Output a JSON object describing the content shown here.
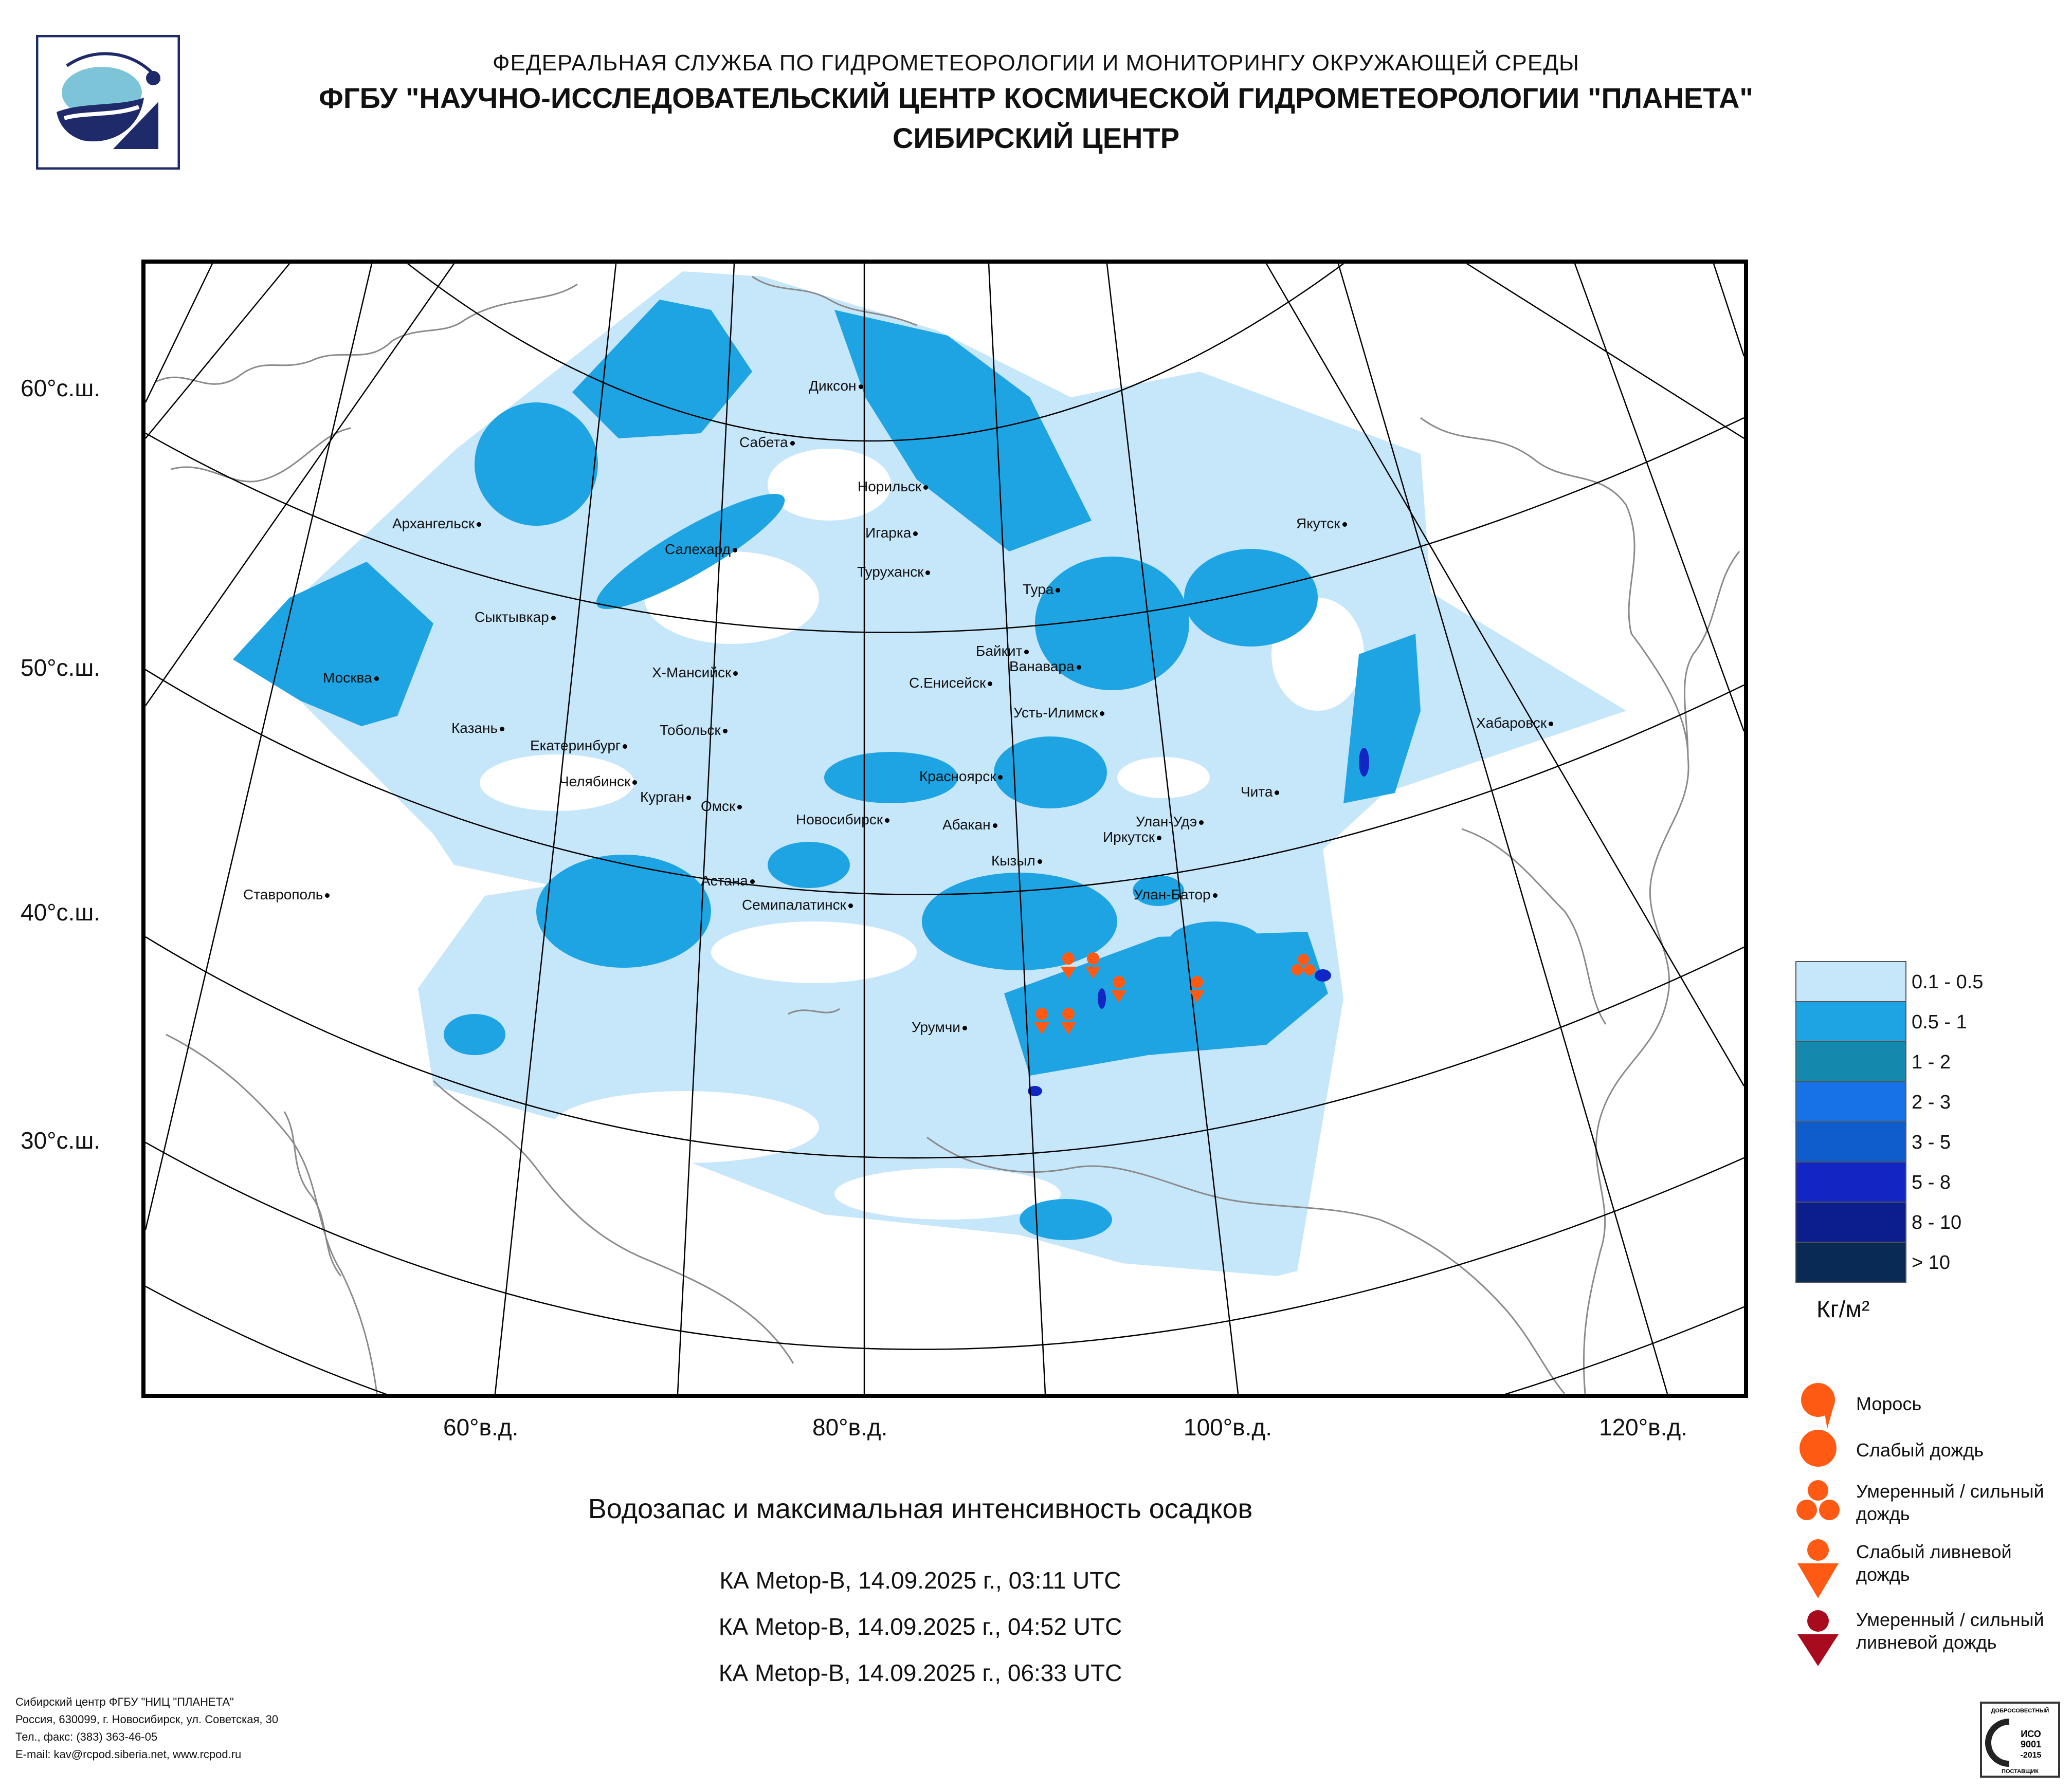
{
  "header": {
    "line1": "ФЕДЕРАЛЬНАЯ СЛУЖБА ПО ГИДРОМЕТЕОРОЛОГИИ И МОНИТОРИНГУ ОКРУЖАЮЩЕЙ СРЕДЫ",
    "line2": "ФГБУ \"НАУЧНО-ИССЛЕДОВАТЕЛЬСКИЙ ЦЕНТР КОСМИЧЕСКОЙ ГИДРОМЕТЕОРОЛОГИИ \"ПЛАНЕТА\"",
    "line3": "СИБИРСКИЙ ЦЕНТР"
  },
  "map": {
    "lat_labels": [
      "60°с.ш.",
      "50°с.ш.",
      "40°с.ш.",
      "30°с.ш."
    ],
    "lon_labels": [
      "60°в.д.",
      "80°в.д.",
      "100°в.д.",
      "120°в.д."
    ],
    "cities": [
      "Диксон",
      "Сабета",
      "Норильск",
      "Архангельск",
      "Салехард",
      "Игарка",
      "Туруханск",
      "Якутск",
      "Тура",
      "Сыктывкар",
      "Байкит",
      "Ванавара",
      "Москва",
      "Х-Мансийск",
      "С.Енисейск",
      "Усть-Илимск",
      "Казань",
      "Тобольск",
      "Екатеринбург",
      "Хабаровск",
      "Челябинск",
      "Курган",
      "Красноярск",
      "Чита",
      "Омск",
      "Новосибирск",
      "Абакан",
      "Улан-Удэ",
      "Иркутск",
      "Астана",
      "Кызыл",
      "Ставрополь",
      "Семипалатинск",
      "Улан-Батор",
      "Урумчи"
    ],
    "colors": {
      "light": "#c6e6fa",
      "medium": "#1ea4e3",
      "ocean": "#ffffff",
      "coast": "#8a8a8a",
      "grid": "#000000",
      "precip": "#ff5a14"
    }
  },
  "title": "Водозапас и максимальная интенсивность осадков",
  "passes": [
    "КА Metop-B, 14.09.2025 г., 03:11 UTC",
    "КА Metop-B, 14.09.2025 г., 04:52 UTC",
    "КА Metop-B, 14.09.2025 г., 06:33 UTC"
  ],
  "legend": {
    "classes": [
      {
        "label": "0.1 - 0.5",
        "color": "#c6e6fa"
      },
      {
        "label": "0.5 - 1",
        "color": "#1ea4e3"
      },
      {
        "label": "1 - 2",
        "color": "#1488ad"
      },
      {
        "label": "2 - 3",
        "color": "#1672e6"
      },
      {
        "label": "3 - 5",
        "color": "#0f5ccc"
      },
      {
        "label": "5 - 8",
        "color": "#1226c4"
      },
      {
        "label": "8 - 10",
        "color": "#0c1e8c"
      },
      {
        "label": "> 10",
        "color": "#0a2a56"
      }
    ],
    "unit": "Кг/м²"
  },
  "precip_legend": [
    {
      "label": "Морось",
      "icon": "drizzle-icon"
    },
    {
      "label": "Слабый дождь",
      "icon": "light-rain-icon"
    },
    {
      "label": "Умеренный / сильный дождь",
      "icon": "moderate-rain-icon"
    },
    {
      "label": "Слабый ливневой дождь",
      "icon": "light-shower-icon"
    },
    {
      "label": "Умеренный / сильный ливневой дождь",
      "icon": "heavy-shower-icon"
    }
  ],
  "footer": [
    "Сибирский центр ФГБУ \"НИЦ \"ПЛАНЕТА\"",
    "Россия, 630099, г. Новосибирск, ул. Советская, 30",
    "Тел., факс: (383) 363-46-05",
    "E-mail: kav@rcpod.siberia.net, www.rcpod.ru"
  ],
  "iso_badge": [
    "ДОБРОСОВЕСТНЫЙ",
    "ИСО",
    "9001",
    "-2015",
    "ПОСТАВЩИК"
  ]
}
